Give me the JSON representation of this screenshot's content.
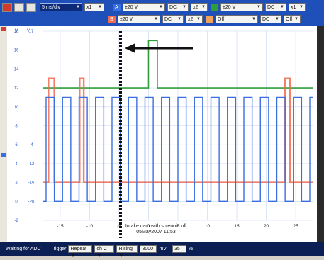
{
  "toolbar": {
    "row1": {
      "timebase": "5 ms/div",
      "zoom": "x1",
      "chA_channel": "A",
      "chA_range": "±20 V",
      "chA_coupling": "DC",
      "chA_zoom": "x2",
      "chC_range": "±20 V",
      "chC_coupling": "DC",
      "chC_zoom": "x1"
    },
    "row2": {
      "chB_channel": "B",
      "chB_range": "±20 V",
      "chB_coupling": "DC",
      "chB_zoom": "x2",
      "chD_range": "Off",
      "chD_coupling": "DC",
      "chD_off": "Off"
    },
    "colors": {
      "chA": "#3a6fe0",
      "chB": "#f26a4f",
      "chC": "#2f9e3a"
    }
  },
  "axes": {
    "left_unit_a": "V",
    "left_unit_b": "V",
    "left_ticks_a": [
      "18",
      "16",
      "14",
      "12",
      "10",
      "8",
      "6",
      "4",
      "2",
      "0",
      "-2"
    ],
    "left_ticks_b": [
      "17",
      "",
      "",
      "",
      "",
      "",
      "-4",
      "-12",
      "-16",
      "-20",
      ""
    ],
    "x_ticks": [
      "-15",
      "-10",
      "-5",
      "0",
      "5",
      "10",
      "15",
      "20",
      "25"
    ]
  },
  "annotation": {
    "line1": "Intake cam with solenoid off",
    "line2": "05May2007  11:53"
  },
  "status": {
    "state": "Waiting for ADC",
    "trigger_label": "Trigger",
    "trigger_mode": "Repeat",
    "trigger_channel": "ch C",
    "trigger_edge": "Rising",
    "trigger_level": "8000",
    "trigger_level_unit": "mV",
    "pretrigger": "35",
    "pretrigger_unit": "%"
  },
  "chart_data": {
    "type": "line",
    "x_unit": "ms",
    "xlim": [
      -18,
      28
    ],
    "series": [
      {
        "channel": "A",
        "color": "#3a6fe0",
        "shape": "square wave",
        "low_v": 0,
        "high_v": 11,
        "period_ms": 2.8
      },
      {
        "channel": "B",
        "color": "#f26a4f",
        "shape": "square wave",
        "low_v": 2,
        "high_v": 13
      },
      {
        "channel": "C",
        "color": "#2f9e3a",
        "shape": "step",
        "low_v": 12,
        "high_v": 17,
        "step_up_ms": 0,
        "step_down_ms": 25
      }
    ]
  }
}
